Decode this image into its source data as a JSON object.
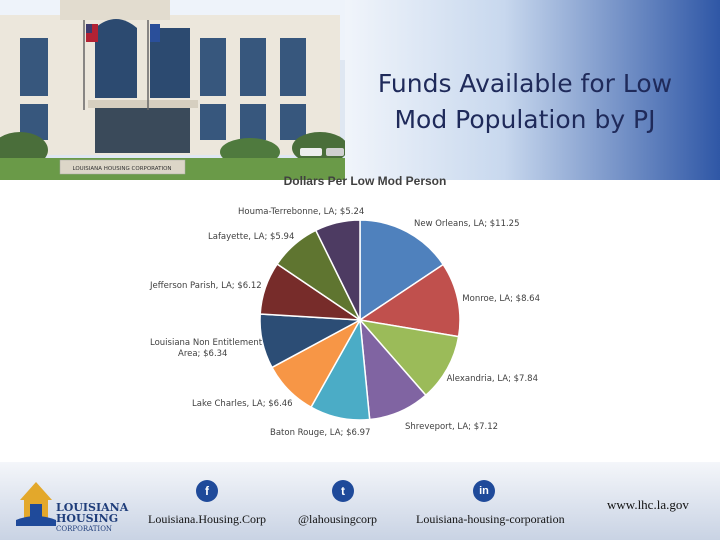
{
  "slide": {
    "title_line1": "Funds Available for Low",
    "title_line2": "Mod Population by PJ",
    "building_sign": "LOUISIANA HOUSING CORPORATION"
  },
  "chart_data": {
    "type": "pie",
    "title": "Dollars Per Low Mod Person",
    "slices": [
      {
        "label": "New Orleans, LA; $11.25",
        "value": 11.25,
        "color": "#4f81bd"
      },
      {
        "label": "Monroe, LA; $8.64",
        "value": 8.64,
        "color": "#c0504d"
      },
      {
        "label": "Alexandria, LA; $7.84",
        "value": 7.84,
        "color": "#9bbb59"
      },
      {
        "label": "Shreveport, LA; $7.12",
        "value": 7.12,
        "color": "#8064a2"
      },
      {
        "label": "Baton Rouge, LA; $6.97",
        "value": 6.97,
        "color": "#4bacc6"
      },
      {
        "label": "Lake Charles, LA; $6.46",
        "value": 6.46,
        "color": "#f79646"
      },
      {
        "label": "Louisiana Non Entitlement Area; $6.34",
        "value": 6.34,
        "color": "#2c4d75"
      },
      {
        "label": "Jefferson Parish, LA; $6.12",
        "value": 6.12,
        "color": "#772c2a"
      },
      {
        "label": "Lafayette, LA; $5.94",
        "value": 5.94,
        "color": "#5f7530"
      },
      {
        "label": "Houma-Terrebonne, LA; $5.24",
        "value": 5.24,
        "color": "#4d3b62"
      }
    ],
    "legend": "none"
  },
  "footer": {
    "logo_line1": "LOUISIANA",
    "logo_line2": "HOUSING",
    "logo_line3": "CORPORATION",
    "facebook_icon": "facebook-icon",
    "facebook_text": "Louisiana.Housing.Corp",
    "twitter_icon": "twitter-icon",
    "twitter_text": "@lahousingcorp",
    "linkedin_icon": "linkedin-icon",
    "linkedin_text": "Louisiana-housing-corporation",
    "website": "www.lhc.la.gov"
  }
}
